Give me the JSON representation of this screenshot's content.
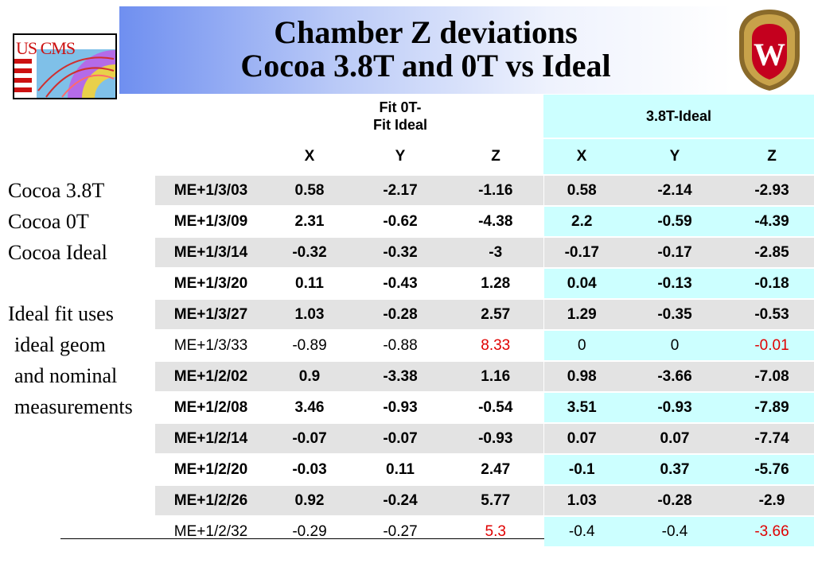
{
  "title": {
    "line1": "Chamber Z deviations",
    "line2": "Cocoa 3.8T and 0T vs Ideal"
  },
  "logos": {
    "left": "US CMS",
    "right": "W"
  },
  "notes": {
    "line1": "Cocoa 3.8T",
    "line2": "Cocoa 0T",
    "line3": "Cocoa Ideal",
    "line4": "Ideal fit uses",
    "line5": "ideal geom",
    "line6": "and nominal",
    "line7": "measurements"
  },
  "table": {
    "group1": {
      "line1": "Fit 0T-",
      "line2": "Fit Ideal"
    },
    "group2": "3.8T-Ideal",
    "columns": [
      "X",
      "Y",
      "Z",
      "X",
      "Y",
      "Z"
    ],
    "rows": [
      {
        "label": "ME+1/3/03",
        "bold": true,
        "values": [
          "0.58",
          "-2.17",
          "-1.16",
          "0.58",
          "-2.14",
          "-2.93"
        ],
        "red": []
      },
      {
        "label": "ME+1/3/09",
        "bold": true,
        "values": [
          "2.31",
          "-0.62",
          "-4.38",
          "2.2",
          "-0.59",
          "-4.39"
        ],
        "red": []
      },
      {
        "label": "ME+1/3/14",
        "bold": true,
        "values": [
          "-0.32",
          "-0.32",
          "-3",
          "-0.17",
          "-0.17",
          "-2.85"
        ],
        "red": []
      },
      {
        "label": "ME+1/3/20",
        "bold": true,
        "values": [
          "0.11",
          "-0.43",
          "1.28",
          "0.04",
          "-0.13",
          "-0.18"
        ],
        "red": []
      },
      {
        "label": "ME+1/3/27",
        "bold": true,
        "values": [
          "1.03",
          "-0.28",
          "2.57",
          "1.29",
          "-0.35",
          "-0.53"
        ],
        "red": []
      },
      {
        "label": "ME+1/3/33",
        "bold": false,
        "values": [
          "-0.89",
          "-0.88",
          "8.33",
          "0",
          "0",
          "-0.01"
        ],
        "red": [
          2,
          5
        ]
      },
      {
        "label": "ME+1/2/02",
        "bold": true,
        "values": [
          "0.9",
          "-3.38",
          "1.16",
          "0.98",
          "-3.66",
          "-7.08"
        ],
        "red": []
      },
      {
        "label": "ME+1/2/08",
        "bold": true,
        "values": [
          "3.46",
          "-0.93",
          "-0.54",
          "3.51",
          "-0.93",
          "-7.89"
        ],
        "red": []
      },
      {
        "label": "ME+1/2/14",
        "bold": true,
        "values": [
          "-0.07",
          "-0.07",
          "-0.93",
          "0.07",
          "0.07",
          "-7.74"
        ],
        "red": []
      },
      {
        "label": "ME+1/2/20",
        "bold": true,
        "values": [
          "-0.03",
          "0.11",
          "2.47",
          "-0.1",
          "0.37",
          "-5.76"
        ],
        "red": []
      },
      {
        "label": "ME+1/2/26",
        "bold": true,
        "values": [
          "0.92",
          "-0.24",
          "5.77",
          "1.03",
          "-0.28",
          "-2.9"
        ],
        "red": []
      },
      {
        "label": "ME+1/2/32",
        "bold": false,
        "values": [
          "-0.29",
          "-0.27",
          "5.3",
          "-0.4",
          "-0.4",
          "-3.66"
        ],
        "red": [
          2,
          5
        ]
      }
    ]
  },
  "colors": {
    "grey_row": "#e3e3e3",
    "cyan_block": "#ccffff",
    "highlight_red": "#e00000",
    "title_blue": "#6f8ff0"
  }
}
